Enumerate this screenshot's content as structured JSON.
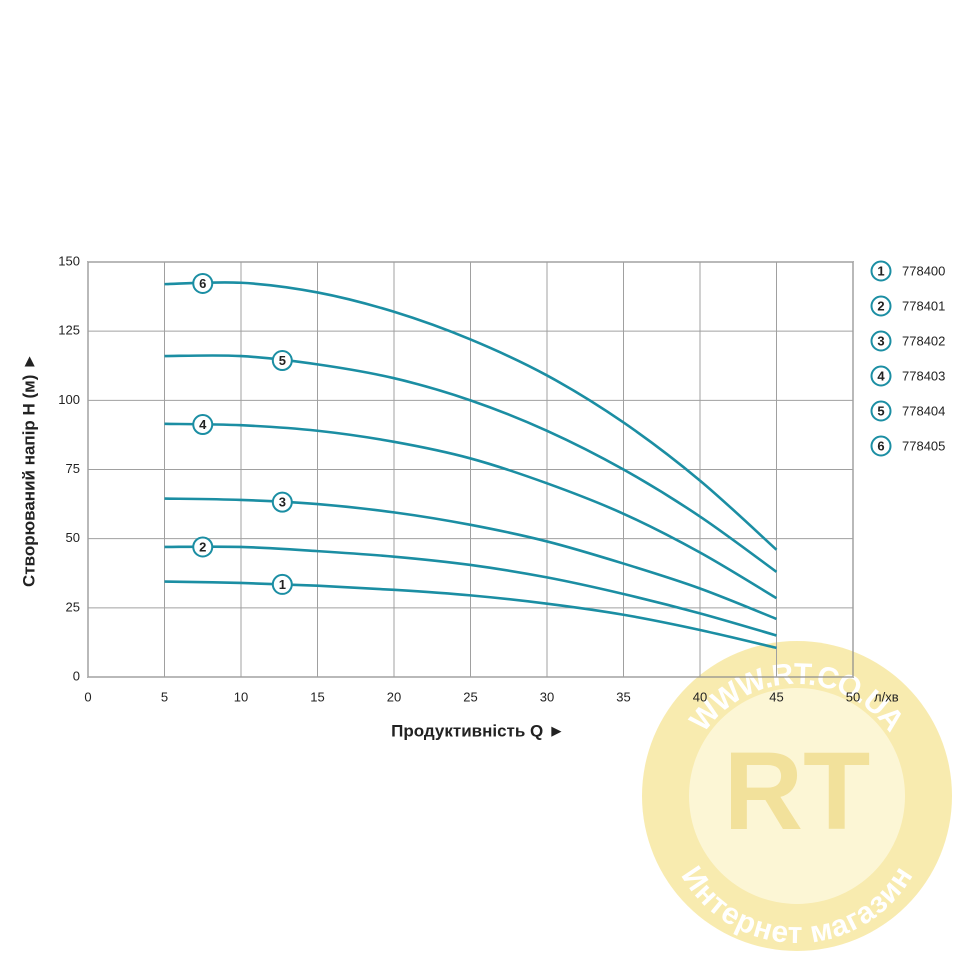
{
  "chart_data": {
    "type": "line",
    "y_label": "Створюваний напір H (м) ►",
    "x_label": "Продуктивність  Q ►",
    "x_unit": "л/хв",
    "x": [
      5,
      10,
      15,
      20,
      25,
      30,
      35,
      40,
      45
    ],
    "xlim": [
      0,
      50
    ],
    "xticks": [
      0,
      5,
      10,
      15,
      20,
      25,
      30,
      35,
      40,
      45,
      50
    ],
    "ylim": [
      0,
      150
    ],
    "yticks": [
      0,
      25,
      50,
      75,
      100,
      125,
      150
    ],
    "grid": true,
    "legend": "right",
    "series": [
      {
        "name": "778400",
        "label": "1",
        "color": "#1b8ea3",
        "values": [
          34.5,
          34,
          33,
          31.5,
          29.5,
          26.5,
          22.5,
          17,
          10.5
        ]
      },
      {
        "name": "778401",
        "label": "2",
        "color": "#1b8ea3",
        "values": [
          47,
          47,
          45.5,
          43.5,
          40.5,
          36,
          30,
          23,
          15
        ]
      },
      {
        "name": "778402",
        "label": "3",
        "color": "#1b8ea3",
        "values": [
          64.5,
          64,
          62.5,
          59.5,
          55,
          49,
          41,
          32,
          21
        ]
      },
      {
        "name": "778403",
        "label": "4",
        "color": "#1b8ea3",
        "values": [
          91.5,
          91,
          89,
          85,
          79,
          70,
          59,
          45,
          28.5
        ]
      },
      {
        "name": "778404",
        "label": "5",
        "color": "#1b8ea3",
        "values": [
          116,
          116,
          113,
          108,
          100,
          89,
          75,
          58,
          38
        ]
      },
      {
        "name": "778405",
        "label": "6",
        "color": "#1b8ea3",
        "values": [
          142,
          142.5,
          139,
          132,
          122,
          109,
          92,
          71,
          46
        ]
      }
    ],
    "watermark": {
      "logo": "RT",
      "url": "WWW.RT.CO.UA",
      "caption": "Интернет магазин"
    }
  }
}
